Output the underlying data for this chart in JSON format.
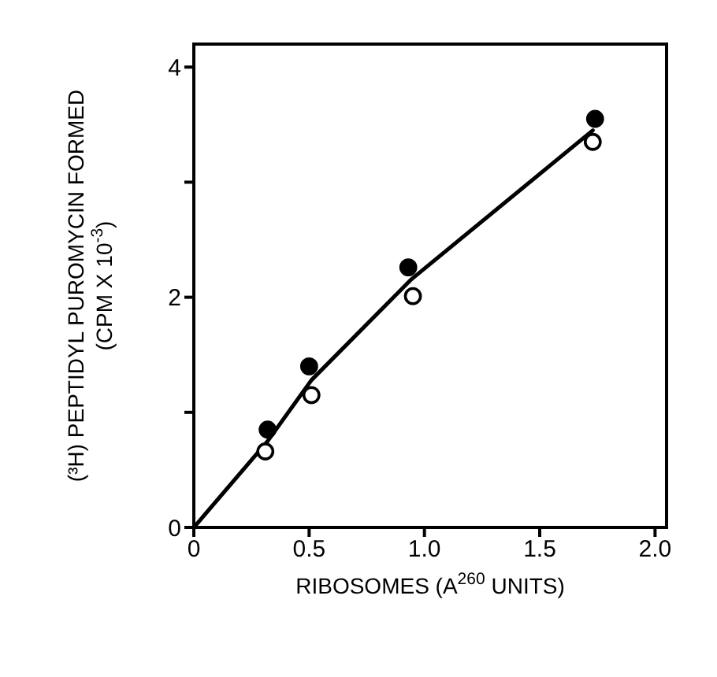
{
  "chart_data": {
    "type": "scatter",
    "xlabel": "RIBOSOMES (A$^{260}$ UNITS)",
    "ylabel": "(³H) PEPTIDYL PUROMYCIN FORMED (CPM X 10$^{-3}$)",
    "series": [
      {
        "type": "line",
        "color": "#000000",
        "x": [
          0,
          0.32,
          0.51,
          0.94,
          1.73
        ],
        "values": [
          0,
          0.75,
          1.28,
          2.15,
          3.45
        ],
        "marker": "none"
      },
      {
        "color": "#000000",
        "x": [
          0.32,
          0.5,
          0.93,
          1.74
        ],
        "values": [
          0.85,
          1.4,
          2.26,
          3.55
        ],
        "marker": "circle"
      },
      {
        "color": "#ffffff",
        "x": [
          0.31,
          0.51,
          0.95,
          1.73
        ],
        "values": [
          0.66,
          1.15,
          2.01,
          3.35
        ],
        "marker": "circle"
      }
    ],
    "xlim": [
      0,
      2.05
    ],
    "ylim": [
      0,
      4.2
    ],
    "xticks": [
      0,
      0.5,
      {
        "value": 1,
        "label": "1.0"
      },
      1.5,
      {
        "value": 2,
        "label": "2.0"
      }
    ],
    "yticks": [
      0,
      {
        "value": 1,
        "label": null
      },
      2,
      {
        "value": 3,
        "label": null
      },
      4
    ],
    "grid": false
  }
}
